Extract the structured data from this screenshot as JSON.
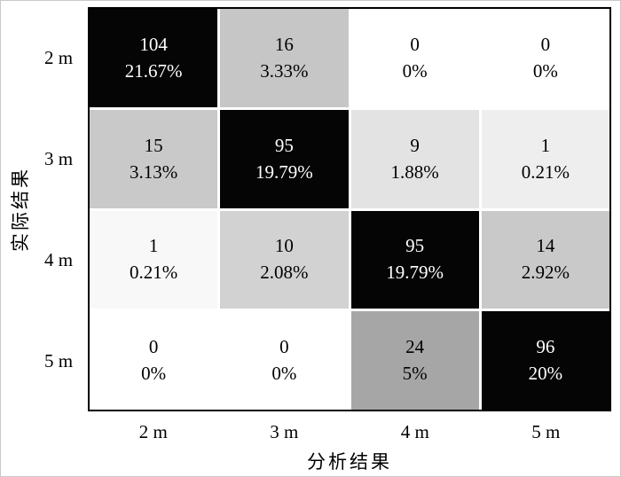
{
  "chart_data": {
    "type": "heatmap",
    "title": "",
    "xlabel": "分析结果",
    "ylabel": "实际结果",
    "row_labels": [
      "2 m",
      "3 m",
      "4 m",
      "5 m"
    ],
    "col_labels": [
      "2 m",
      "3 m",
      "4 m",
      "5 m"
    ],
    "legend": "none",
    "grid": "off",
    "cells": [
      [
        {
          "count": 104,
          "pct": "21.67%",
          "bg": "#050505",
          "fg": "#ffffff"
        },
        {
          "count": 16,
          "pct": "3.33%",
          "bg": "#c6c6c6",
          "fg": "#000000"
        },
        {
          "count": 0,
          "pct": "0%",
          "bg": "#ffffff",
          "fg": "#000000"
        },
        {
          "count": 0,
          "pct": "0%",
          "bg": "#ffffff",
          "fg": "#000000"
        }
      ],
      [
        {
          "count": 15,
          "pct": "3.13%",
          "bg": "#c9c9c9",
          "fg": "#000000"
        },
        {
          "count": 95,
          "pct": "19.79%",
          "bg": "#050505",
          "fg": "#ffffff"
        },
        {
          "count": 9,
          "pct": "1.88%",
          "bg": "#e3e3e3",
          "fg": "#000000"
        },
        {
          "count": 1,
          "pct": "0.21%",
          "bg": "#eeeeee",
          "fg": "#000000"
        }
      ],
      [
        {
          "count": 1,
          "pct": "0.21%",
          "bg": "#f8f8f8",
          "fg": "#000000"
        },
        {
          "count": 10,
          "pct": "2.08%",
          "bg": "#d2d2d2",
          "fg": "#000000"
        },
        {
          "count": 95,
          "pct": "19.79%",
          "bg": "#050505",
          "fg": "#ffffff"
        },
        {
          "count": 14,
          "pct": "2.92%",
          "bg": "#c9c9c9",
          "fg": "#000000"
        }
      ],
      [
        {
          "count": 0,
          "pct": "0%",
          "bg": "#ffffff",
          "fg": "#000000"
        },
        {
          "count": 0,
          "pct": "0%",
          "bg": "#ffffff",
          "fg": "#000000"
        },
        {
          "count": 24,
          "pct": "5%",
          "bg": "#a6a6a6",
          "fg": "#000000"
        },
        {
          "count": 96,
          "pct": "20%",
          "bg": "#050505",
          "fg": "#ffffff"
        }
      ]
    ]
  }
}
